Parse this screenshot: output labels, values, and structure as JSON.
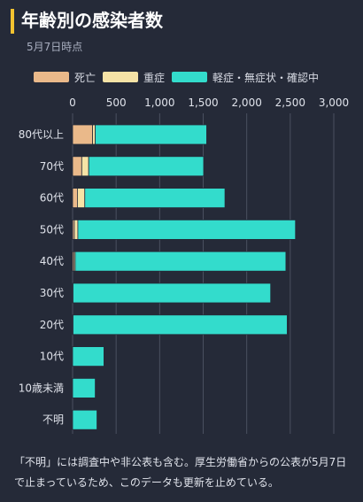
{
  "header": {
    "title": "年齢別の感染者数",
    "subtitle": "5月7日時点"
  },
  "colors": {
    "background": "#252a38",
    "accent": "#f2c230",
    "grid": "#4a5060"
  },
  "chart_data": {
    "type": "bar",
    "orientation": "horizontal",
    "stacked": true,
    "categories": [
      "80代以上",
      "70代",
      "60代",
      "50代",
      "40代",
      "30代",
      "20代",
      "10代",
      "10歳未満",
      "不明"
    ],
    "series": [
      {
        "name": "死亡",
        "color": "#eab98a",
        "values": [
          230,
          105,
          55,
          20,
          15,
          0,
          0,
          0,
          0,
          0
        ]
      },
      {
        "name": "重症",
        "color": "#f6e3a6",
        "values": [
          30,
          80,
          85,
          40,
          15,
          5,
          5,
          0,
          0,
          0
        ]
      },
      {
        "name": "軽症・無症状・確認中",
        "color": "#33dccc",
        "values": [
          1280,
          1320,
          1610,
          2500,
          2420,
          2270,
          2460,
          360,
          260,
          280
        ]
      }
    ],
    "xlim": [
      0,
      3000
    ],
    "x_ticks": [
      "0",
      "500",
      "1,000",
      "1,500",
      "2,000",
      "2,500",
      "3,000"
    ],
    "x_tick_values": [
      0,
      500,
      1000,
      1500,
      2000,
      2500,
      3000
    ],
    "grid": true,
    "legend_position": "top-left"
  },
  "footnote": "「不明」には調査中や非公表も含む。厚生労働省からの公表が5月7日で止まっているため、このデータも更新を止めている。"
}
